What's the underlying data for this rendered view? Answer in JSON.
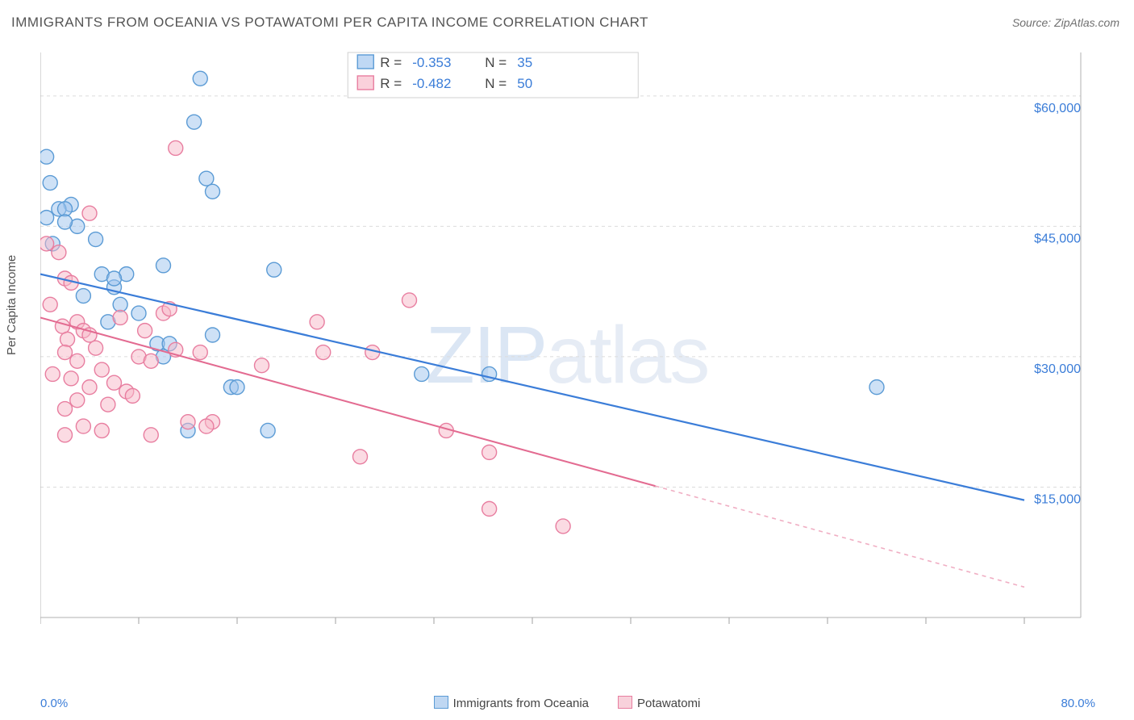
{
  "title": "IMMIGRANTS FROM OCEANIA VS POTAWATOMI PER CAPITA INCOME CORRELATION CHART",
  "source": "Source: ZipAtlas.com",
  "ylabel": "Per Capita Income",
  "watermark": {
    "zip": "ZIP",
    "atlas": "atlas"
  },
  "chart": {
    "type": "scatter",
    "background_color": "#ffffff",
    "grid_color": "#dcdcdc",
    "axis_color": "#b0b0b0",
    "tick_color": "#a0a0a0",
    "xlim": [
      0,
      80
    ],
    "ylim": [
      0,
      65000
    ],
    "x_label_min": "0.0%",
    "x_label_max": "80.0%",
    "x_ticks": [
      0,
      8,
      16,
      24,
      32,
      40,
      48,
      56,
      64,
      72,
      80
    ],
    "y_value_labels": [
      {
        "v": 15000,
        "text": "$15,000"
      },
      {
        "v": 30000,
        "text": "$30,000"
      },
      {
        "v": 45000,
        "text": "$45,000"
      },
      {
        "v": 60000,
        "text": "$60,000"
      }
    ],
    "y_label_color": "#3b7dd8",
    "y_label_fontsize": 16,
    "series": [
      {
        "name": "Immigrants from Oceania",
        "R": "-0.353",
        "N": "35",
        "marker_fill": "#9dc3ee",
        "marker_stroke": "#5b9bd5",
        "marker_fill_opacity": 0.5,
        "marker_r": 9,
        "line_color": "#3b7dd8",
        "line_width": 2.2,
        "trend": {
          "x1": 0,
          "y1": 39500,
          "x2": 80,
          "y2": 13500,
          "solid_to_x": 80
        },
        "points": [
          [
            0.5,
            53000
          ],
          [
            0.8,
            50000
          ],
          [
            2.5,
            47500
          ],
          [
            0.5,
            46000
          ],
          [
            1.5,
            47000
          ],
          [
            3.0,
            45000
          ],
          [
            2.0,
            47000
          ],
          [
            1.0,
            43000
          ],
          [
            4.5,
            43500
          ],
          [
            5.0,
            39500
          ],
          [
            7.0,
            39500
          ],
          [
            10.0,
            40500
          ],
          [
            13.0,
            62000
          ],
          [
            12.5,
            57000
          ],
          [
            13.5,
            50500
          ],
          [
            14.0,
            49000
          ],
          [
            19.0,
            40000
          ],
          [
            8.0,
            35000
          ],
          [
            9.5,
            31500
          ],
          [
            10.5,
            31500
          ],
          [
            10.0,
            30000
          ],
          [
            14.0,
            32500
          ],
          [
            15.5,
            26500
          ],
          [
            16.0,
            26500
          ],
          [
            31.0,
            28000
          ],
          [
            36.5,
            28000
          ],
          [
            18.5,
            21500
          ],
          [
            12.0,
            21500
          ],
          [
            3.5,
            37000
          ],
          [
            6.0,
            38000
          ],
          [
            6.5,
            36000
          ],
          [
            5.5,
            34000
          ],
          [
            68.0,
            26500
          ],
          [
            6.0,
            39000
          ],
          [
            2.0,
            45500
          ]
        ]
      },
      {
        "name": "Potawatomi",
        "R": "-0.482",
        "N": "50",
        "marker_fill": "#f7b8c8",
        "marker_stroke": "#e87ea0",
        "marker_fill_opacity": 0.5,
        "marker_r": 9,
        "line_color": "#e36b91",
        "line_width": 2.0,
        "trend": {
          "x1": 0,
          "y1": 34500,
          "x2": 80,
          "y2": 3500,
          "solid_to_x": 50
        },
        "points": [
          [
            0.5,
            43000
          ],
          [
            1.5,
            42000
          ],
          [
            2.0,
            39000
          ],
          [
            2.5,
            38500
          ],
          [
            3.0,
            34000
          ],
          [
            0.8,
            36000
          ],
          [
            1.8,
            33500
          ],
          [
            2.2,
            32000
          ],
          [
            3.5,
            33000
          ],
          [
            4.0,
            32500
          ],
          [
            4.5,
            31000
          ],
          [
            2.0,
            30500
          ],
          [
            3.0,
            29500
          ],
          [
            5.0,
            28500
          ],
          [
            1.0,
            28000
          ],
          [
            2.5,
            27500
          ],
          [
            6.0,
            27000
          ],
          [
            7.0,
            26000
          ],
          [
            4.0,
            26500
          ],
          [
            3.0,
            25000
          ],
          [
            5.5,
            24500
          ],
          [
            2.0,
            24000
          ],
          [
            8.0,
            30000
          ],
          [
            9.0,
            29500
          ],
          [
            10.0,
            35000
          ],
          [
            11.0,
            30800
          ],
          [
            13.0,
            30500
          ],
          [
            12.0,
            22500
          ],
          [
            14.0,
            22500
          ],
          [
            13.5,
            22000
          ],
          [
            10.5,
            35500
          ],
          [
            11.0,
            54000
          ],
          [
            4.0,
            46500
          ],
          [
            2.0,
            21000
          ],
          [
            3.5,
            22000
          ],
          [
            5.0,
            21500
          ],
          [
            9.0,
            21000
          ],
          [
            18.0,
            29000
          ],
          [
            22.5,
            34000
          ],
          [
            23.0,
            30500
          ],
          [
            26.0,
            18500
          ],
          [
            27.0,
            30500
          ],
          [
            30.0,
            36500
          ],
          [
            33.0,
            21500
          ],
          [
            36.5,
            19000
          ],
          [
            36.5,
            12500
          ],
          [
            42.5,
            10500
          ],
          [
            6.5,
            34500
          ],
          [
            8.5,
            33000
          ],
          [
            7.5,
            25500
          ]
        ]
      }
    ],
    "top_legend": {
      "border_color": "#d0d0d0",
      "bg": "#ffffff",
      "text_color": "#444444",
      "value_color": "#3b7dd8",
      "R_label": "R = ",
      "N_label": "N = ",
      "fontsize": 17
    },
    "bottom_legend": {
      "items": [
        {
          "sw_fill": "#bfd7f2",
          "sw_stroke": "#5b9bd5",
          "label": "Immigrants from Oceania"
        },
        {
          "sw_fill": "#f8d1db",
          "sw_stroke": "#e87ea0",
          "label": "Potawatomi"
        }
      ]
    }
  }
}
